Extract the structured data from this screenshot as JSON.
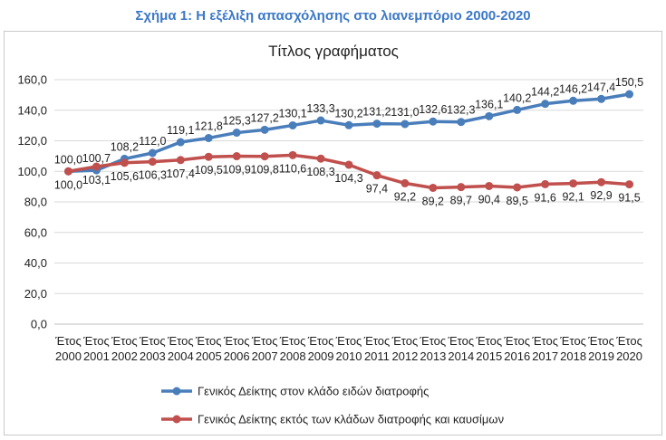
{
  "figure_caption": "Σχήμα 1: Η εξέλιξη απασχόλησης στο λιανεμπόριο 2000-2020",
  "colors": {
    "caption": "#3b78c7",
    "series_1": "#4a7ebb",
    "series_2": "#c0504d",
    "grid": "#d9d9d9"
  },
  "chart_data": {
    "type": "line",
    "title": "Τίτλος γραφήματος",
    "xlabel": "",
    "ylabel": "",
    "categories": [
      [
        "Έτος",
        "2000"
      ],
      [
        "Έτος",
        "2001"
      ],
      [
        "Έτος",
        "2002"
      ],
      [
        "Έτος",
        "2003"
      ],
      [
        "Έτος",
        "2004"
      ],
      [
        "Έτος",
        "2005"
      ],
      [
        "Έτος",
        "2006"
      ],
      [
        "Έτος",
        "2007"
      ],
      [
        "Έτος",
        "2008"
      ],
      [
        "Έτος",
        "2009"
      ],
      [
        "Έτος",
        "2010"
      ],
      [
        "Έτος",
        "2011"
      ],
      [
        "Έτος",
        "2012"
      ],
      [
        "Έτος",
        "2013"
      ],
      [
        "Έτος",
        "2014"
      ],
      [
        "Έτος",
        "2015"
      ],
      [
        "Έτος",
        "2016"
      ],
      [
        "Έτος",
        "2017"
      ],
      [
        "Έτος",
        "2018"
      ],
      [
        "Έτος",
        "2019"
      ],
      [
        "Έτος",
        "2020"
      ]
    ],
    "ylim": [
      0,
      160
    ],
    "yticks": [
      "0,0",
      "20,0",
      "40,0",
      "60,0",
      "80,0",
      "100,0",
      "120,0",
      "140,0",
      "160,0"
    ],
    "grid": true,
    "legend_position": "bottom",
    "series": [
      {
        "name": "Γενικός Δείκτης στον κλάδο ειδών διατροφής",
        "values": [
          100.0,
          100.7,
          108.2,
          112.0,
          119.1,
          121.8,
          125.3,
          127.2,
          130.1,
          133.3,
          130.2,
          131.2,
          131.0,
          132.6,
          132.3,
          136.1,
          140.2,
          144.2,
          146.2,
          147.4,
          150.5
        ],
        "labels": [
          "100,0",
          "100,7",
          "108,2",
          "112,0",
          "119,1",
          "121,8",
          "125,3",
          "127,2",
          "130,1",
          "133,3",
          "130,2",
          "131,2",
          "131,0",
          "132,6",
          "132,3",
          "136,1",
          "140,2",
          "144,2",
          "146,2",
          "147,4",
          "150,5"
        ]
      },
      {
        "name": "Γενικός Δείκτης εκτός των κλάδων διατροφής και καυσίμων",
        "values": [
          100.0,
          103.1,
          105.6,
          106.3,
          107.4,
          109.5,
          109.9,
          109.8,
          110.6,
          108.3,
          104.3,
          97.4,
          92.2,
          89.2,
          89.7,
          90.4,
          89.5,
          91.6,
          92.1,
          92.9,
          91.5
        ],
        "labels": [
          "100,0",
          "103,1",
          "105,6",
          "106,3",
          "107,4",
          "109,5",
          "109,9",
          "109,8",
          "110,6",
          "108,3",
          "104,3",
          "97,4",
          "92,2",
          "89,2",
          "89,7",
          "90,4",
          "89,5",
          "91,6",
          "92,1",
          "92,9",
          "91,5"
        ]
      }
    ]
  }
}
